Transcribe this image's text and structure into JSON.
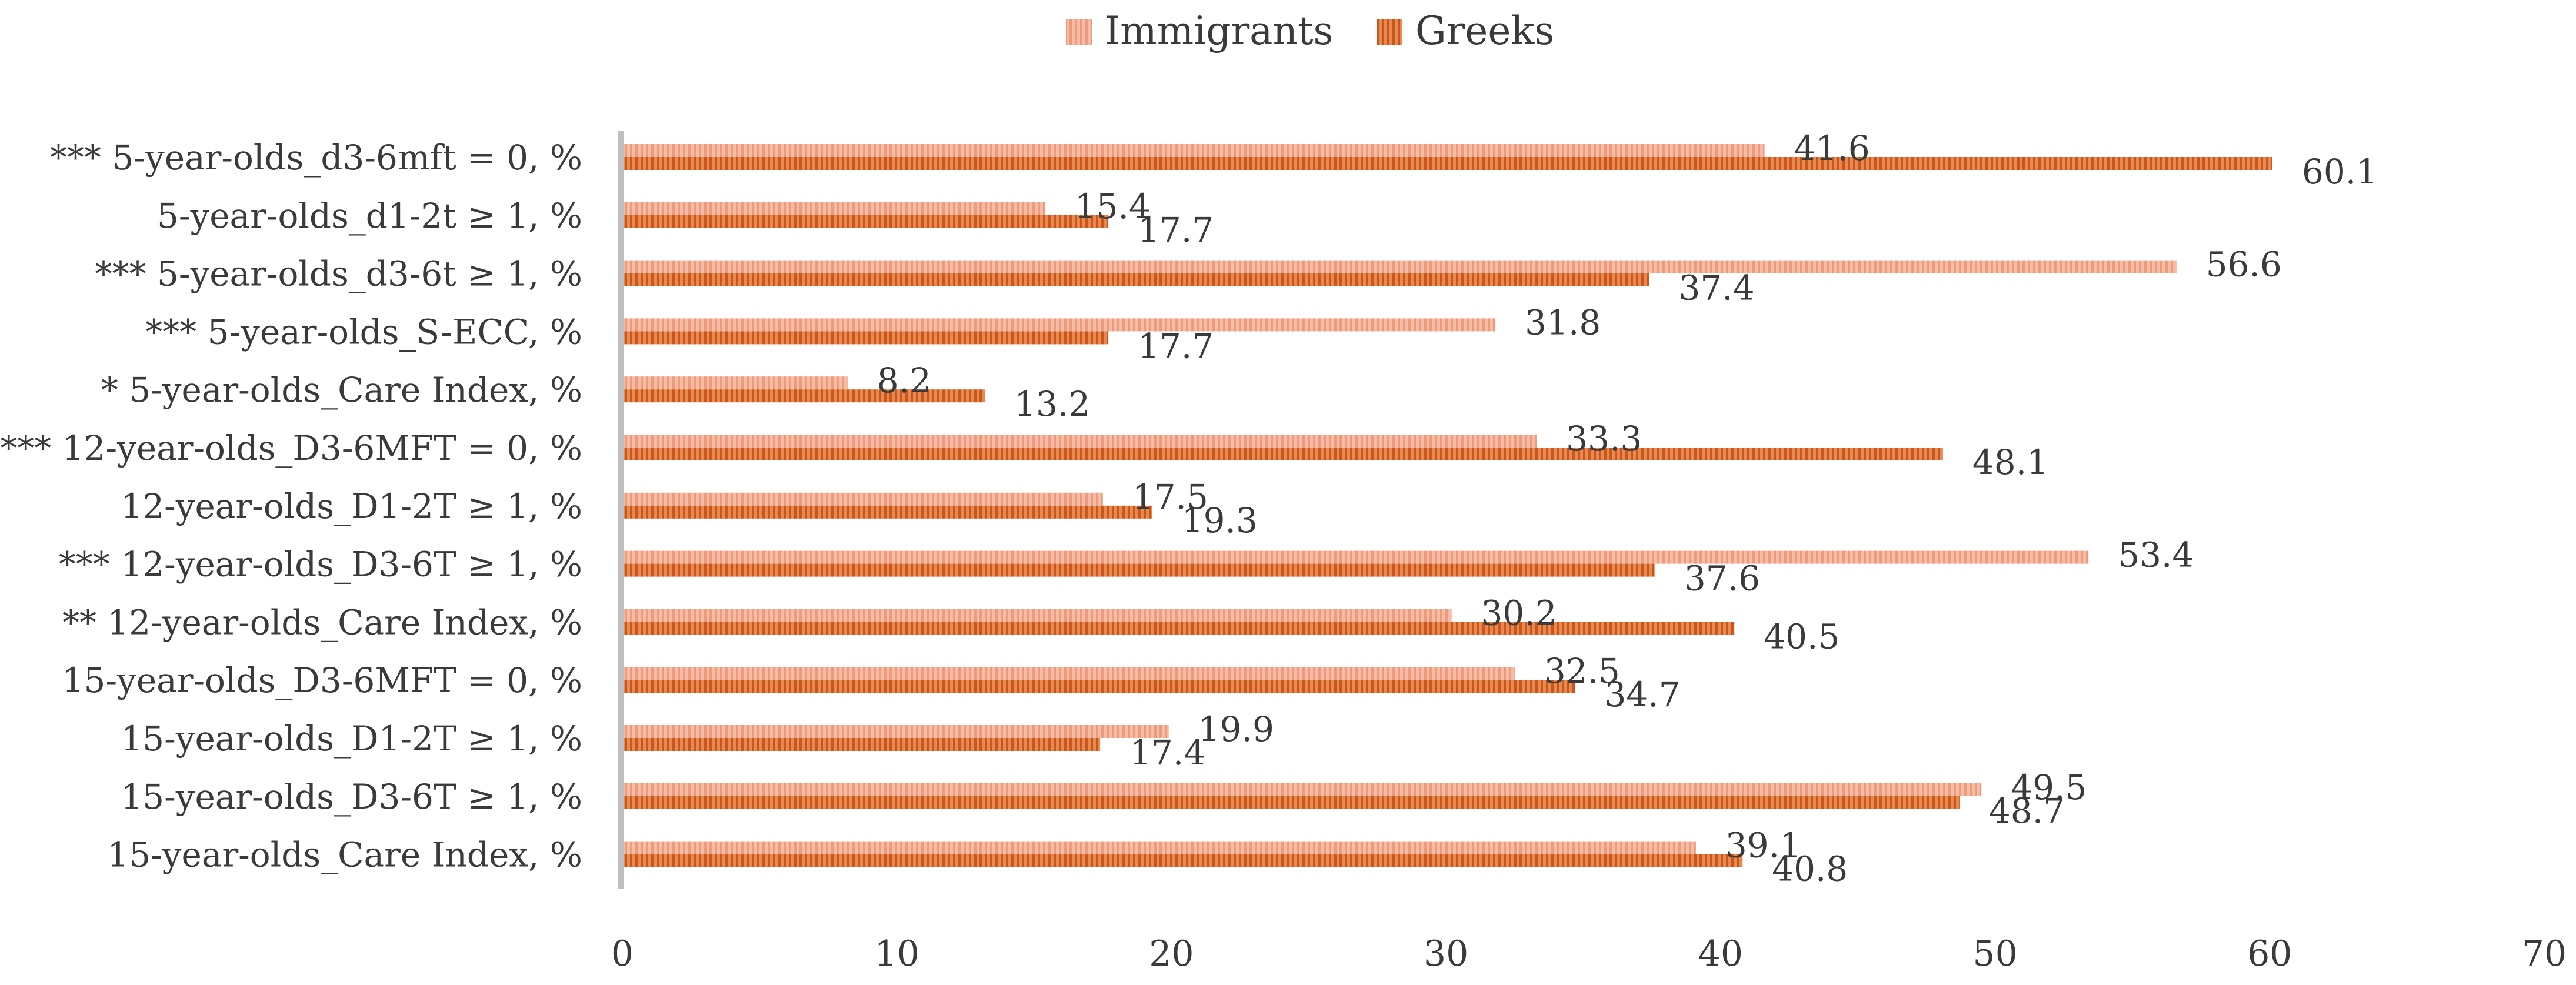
{
  "chart_data": {
    "type": "bar",
    "orientation": "horizontal",
    "title": "",
    "xlabel": "",
    "ylabel": "",
    "xlim": [
      0,
      70
    ],
    "xticks": [
      0,
      10,
      20,
      30,
      40,
      50,
      60,
      70
    ],
    "grid": false,
    "legend_position": "top-center",
    "categories": [
      "*** 5-year-olds_d3-6mft = 0, %",
      "5-year-olds_d1-2t ≥ 1, %",
      "*** 5-year-olds_d3-6t ≥ 1, %",
      "*** 5-year-olds_S-ECC, %",
      "* 5-year-olds_Care Index, %",
      "*** 12-year-olds_D3-6MFT = 0, %",
      "12-year-olds_D1-2T ≥ 1, %",
      "*** 12-year-olds_D3-6T ≥ 1, %",
      "** 12-year-olds_Care Index, %",
      "15-year-olds_D3-6MFT = 0, %",
      "15-year-olds_D1-2T ≥ 1, %",
      "15-year-olds_D3-6T ≥ 1, %",
      "15-year-olds_Care Index, %"
    ],
    "series": [
      {
        "name": "Immigrants",
        "color": "#f2a98c",
        "values": [
          41.6,
          15.4,
          56.6,
          31.8,
          8.2,
          33.3,
          17.5,
          53.4,
          30.2,
          32.5,
          19.9,
          49.5,
          39.1
        ]
      },
      {
        "name": "Greeks",
        "color": "#d9652a",
        "values": [
          60.1,
          17.7,
          37.4,
          17.7,
          13.2,
          48.1,
          19.3,
          37.6,
          40.5,
          34.7,
          17.4,
          48.7,
          40.8
        ]
      }
    ]
  }
}
